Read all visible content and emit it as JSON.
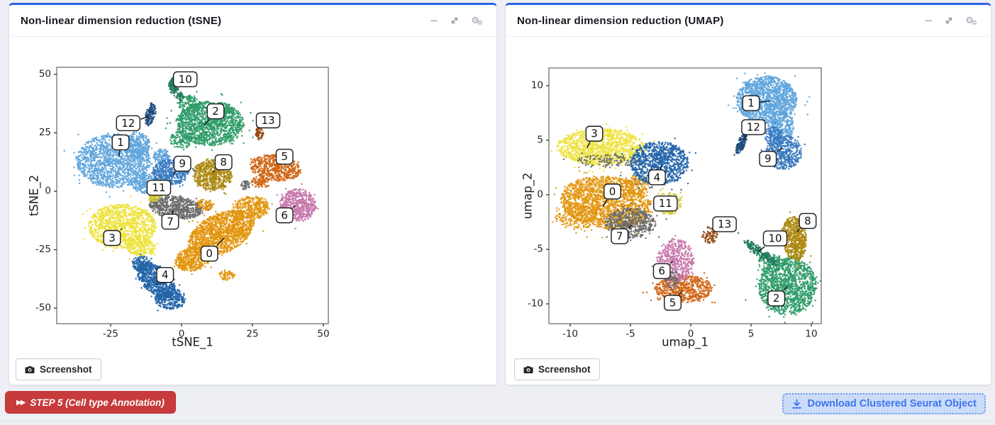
{
  "icons": {
    "minimize": "−",
    "gear": "⚙"
  },
  "panels": [
    {
      "id": "tsne",
      "title": "Non-linear dimension reduction (tSNE)",
      "screenshot_label": "Screenshot"
    },
    {
      "id": "umap",
      "title": "Non-linear dimension reduction (UMAP)",
      "screenshot_label": "Screenshot"
    }
  ],
  "footer": {
    "step_button": {
      "prefix": "▶▶",
      "label": "STEP 5 (Cell type Annotation)",
      "background": "#C73B3D"
    },
    "download_button": {
      "label": "Download Clustered Seurat Object",
      "color": "#3D76EE",
      "background": "#CBDCF9"
    }
  },
  "chart_data": [
    {
      "id": "tsne",
      "type": "scatter",
      "title": "Non-linear dimension reduction (tSNE)",
      "xlabel": "tSNE_1",
      "ylabel": "tSNE_2",
      "xticks": [
        -25,
        0,
        25,
        50
      ],
      "yticks": [
        50,
        25,
        0,
        -25,
        -50
      ],
      "xlim": [
        -44,
        51.8
      ],
      "ylim": [
        -56.5,
        53
      ],
      "grid": false,
      "legend": "none",
      "clusters": [
        {
          "id": "0",
          "color": "#E2960E",
          "label_x": 9.8,
          "label_y": -26.7,
          "target_x": 15,
          "target_y": -20,
          "blobs": [
            [
              14,
              -18,
              13,
              8,
              35,
              1500
            ],
            [
              4,
              -29,
              6.5,
              5,
              20,
              450
            ],
            [
              25,
              -7,
              6,
              5,
              0,
              350
            ],
            [
              16,
              -36,
              3,
              2,
              0,
              60
            ],
            [
              8,
              -6,
              3,
              2.5,
              0,
              100
            ]
          ]
        },
        {
          "id": "1",
          "color": "#60A5DD",
          "label_x": -21.5,
          "label_y": 20.9,
          "target_x": -22,
          "target_y": 15,
          "blobs": [
            [
              -24,
              13,
              13,
              11.5,
              0,
              1500
            ],
            [
              -13,
              3,
              5,
              4,
              0,
              250
            ],
            [
              -16,
              20,
              5,
              5.5,
              0,
              250
            ],
            [
              -7,
              15,
              3,
              3,
              0,
              120
            ]
          ]
        },
        {
          "id": "2",
          "color": "#2F9C68",
          "label_x": 12,
          "label_y": 34.2,
          "target_x": 8,
          "target_y": 28,
          "blobs": [
            [
              10,
              29,
              12,
              9.5,
              0,
              1400
            ],
            [
              3,
              37,
              4,
              4,
              0,
              150
            ],
            [
              14,
              35,
              4,
              3,
              0,
              100
            ],
            [
              0,
              22,
              4,
              4,
              0,
              120
            ]
          ]
        },
        {
          "id": "3",
          "color": "#EDE23B",
          "label_x": -24.5,
          "label_y": -20,
          "target_x": -21,
          "target_y": -16,
          "blobs": [
            [
              -21,
              -15,
              12,
              9.5,
              0,
              1200
            ],
            [
              -14,
              -24,
              5,
              4,
              0,
              200
            ]
          ]
        },
        {
          "id": "4",
          "color": "#2264A9",
          "label_x": -5.8,
          "label_y": -35.8,
          "target_x": -9,
          "target_y": -40,
          "blobs": [
            [
              -9,
              -38,
              9,
              5,
              -52,
              700
            ],
            [
              -4,
              -46,
              5.5,
              4.5,
              0,
              300
            ],
            [
              -14,
              -31,
              3.5,
              3.5,
              0,
              120
            ]
          ]
        },
        {
          "id": "5",
          "color": "#D06414",
          "label_x": 36.3,
          "label_y": 14.8,
          "target_x": 33,
          "target_y": 11,
          "blobs": [
            [
              33,
              10,
              9,
              5.5,
              -10,
              550
            ],
            [
              28,
              4,
              3.5,
              2.5,
              0,
              90
            ]
          ]
        },
        {
          "id": "6",
          "color": "#C677AC",
          "label_x": 36.3,
          "label_y": -10.3,
          "target_x": 40,
          "target_y": -6,
          "blobs": [
            [
              41,
              -6,
              6.5,
              7,
              0,
              560
            ]
          ]
        },
        {
          "id": "7",
          "color": "#6A6A6A",
          "label_x": -4,
          "label_y": -13,
          "target_x": -3,
          "target_y": -8,
          "blobs": [
            [
              -2,
              -7,
              9.5,
              4.8,
              -8,
              620
            ],
            [
              22.5,
              2.5,
              1.6,
              2,
              0,
              40
            ]
          ]
        },
        {
          "id": "8",
          "color": "#AC870F",
          "label_x": 14.8,
          "label_y": 12.4,
          "target_x": 11,
          "target_y": 8,
          "blobs": [
            [
              11,
              7,
              7,
              6.5,
              -20,
              600
            ]
          ]
        },
        {
          "id": "9",
          "color": "#3779BF",
          "label_x": 0.3,
          "label_y": 11.8,
          "target_x": -3,
          "target_y": 7,
          "blobs": [
            [
              -4,
              8,
              6.5,
              5.5,
              0,
              480
            ]
          ]
        },
        {
          "id": "10",
          "color": "#207A5C",
          "label_x": 1.3,
          "label_y": 47.9,
          "target_x": -2,
          "target_y": 45,
          "blobs": [
            [
              -2.5,
              45.5,
              3.8,
              2.0,
              76,
              150
            ],
            [
              -0.5,
              40.5,
              1.5,
              1.5,
              0,
              40
            ]
          ]
        },
        {
          "id": "11",
          "color": "#CFC52F",
          "label_x": -8,
          "label_y": 1.5,
          "target_x": -9,
          "target_y": -1.5,
          "blobs": [
            [
              -9,
              -1.5,
              3.4,
              1.9,
              55,
              130
            ]
          ]
        },
        {
          "id": "12",
          "color": "#1F4E7E",
          "label_x": -18.8,
          "label_y": 29.1,
          "target_x": -11.5,
          "target_y": 32,
          "blobs": [
            [
              -11,
              33,
              5,
              1.6,
              80,
              130
            ]
          ]
        },
        {
          "id": "13",
          "color": "#95470F",
          "label_x": 30.5,
          "label_y": 30.3,
          "target_x": 28,
          "target_y": 26.5,
          "blobs": [
            [
              27.5,
              25,
              3.5,
              1.4,
              85,
              70
            ]
          ]
        }
      ]
    },
    {
      "id": "umap",
      "type": "scatter",
      "title": "Non-linear dimension reduction (UMAP)",
      "xlabel": "umap_1",
      "ylabel": "umap_2",
      "xticks": [
        -10,
        -5,
        0,
        5,
        10
      ],
      "yticks": [
        10,
        5,
        0,
        -5,
        -10
      ],
      "xlim": [
        -11.8,
        10.8
      ],
      "ylim": [
        -11.8,
        11.6
      ],
      "grid": false,
      "legend": "none",
      "clusters": [
        {
          "id": "0",
          "color": "#E2960E",
          "label_x": -6.5,
          "label_y": 0.3,
          "target_x": -7.3,
          "target_y": -1.1,
          "blobs": [
            [
              -7,
              -0.7,
              3.8,
              2.4,
              -8,
              1800
            ],
            [
              -9.5,
              -2,
              1.8,
              1.2,
              0,
              200
            ],
            [
              -4.6,
              0.8,
              1.2,
              1,
              0,
              150
            ]
          ]
        },
        {
          "id": "1",
          "color": "#60A5DD",
          "label_x": 5.0,
          "label_y": 8.4,
          "target_x": 6.6,
          "target_y": 8.6,
          "blobs": [
            [
              6.3,
              8.7,
              2.5,
              2.2,
              0,
              1500
            ],
            [
              7.5,
              6.3,
              1.1,
              1.3,
              0,
              250
            ]
          ]
        },
        {
          "id": "2",
          "color": "#2F9C68",
          "label_x": 7.1,
          "label_y": -9.5,
          "target_x": 8,
          "target_y": -8.4,
          "blobs": [
            [
              8,
              -8.3,
              2.4,
              2.7,
              0,
              1400
            ],
            [
              6.6,
              -6.2,
              1,
              1,
              0,
              100
            ]
          ]
        },
        {
          "id": "3",
          "color": "#EDE23B",
          "label_x": -8,
          "label_y": 5.6,
          "target_x": -8.6,
          "target_y": 4.3,
          "blobs": [
            [
              -7.5,
              4.4,
              3.6,
              1.7,
              0,
              1200
            ]
          ]
        },
        {
          "id": "4",
          "color": "#2264A9",
          "label_x": -2.8,
          "label_y": 1.6,
          "target_x": -2.4,
          "target_y": 2.7,
          "blobs": [
            [
              -2.6,
              2.9,
              2.4,
              2.0,
              0,
              1000
            ]
          ]
        },
        {
          "id": "5",
          "color": "#D06414",
          "label_x": -1.5,
          "label_y": -9.9,
          "target_x": -0.7,
          "target_y": -8.8,
          "blobs": [
            [
              -0.6,
              -8.6,
              2.4,
              1.25,
              0,
              620
            ]
          ]
        },
        {
          "id": "6",
          "color": "#C677AC",
          "label_x": -2.4,
          "label_y": -7.0,
          "target_x": -1.5,
          "target_y": -6.1,
          "blobs": [
            [
              -1.3,
              -6,
              1.55,
              2,
              0,
              520
            ]
          ]
        },
        {
          "id": "7",
          "color": "#6A6A6A",
          "label_x": -5.9,
          "label_y": -3.8,
          "target_x": -4.9,
          "target_y": -2.8,
          "blobs": [
            [
              -5,
              -2.6,
              2.1,
              1.4,
              0,
              550
            ],
            [
              -7,
              3.1,
              2.5,
              0.6,
              0,
              120
            ],
            [
              -1.6,
              -7.7,
              0.6,
              0.9,
              0,
              60
            ]
          ]
        },
        {
          "id": "8",
          "color": "#AC870F",
          "label_x": 9.7,
          "label_y": -2.4,
          "target_x": 8.8,
          "target_y": -3.4,
          "blobs": [
            [
              8.6,
              -4,
              1.0,
              2.0,
              5,
              600
            ]
          ]
        },
        {
          "id": "9",
          "color": "#3779BF",
          "label_x": 6.4,
          "label_y": 3.3,
          "target_x": 7.6,
          "target_y": 4.3,
          "blobs": [
            [
              7.7,
              3.9,
              1.5,
              1.6,
              0,
              500
            ],
            [
              6.9,
              5.4,
              0.8,
              0.9,
              0,
              120
            ]
          ]
        },
        {
          "id": "10",
          "color": "#207A5C",
          "label_x": 7.0,
          "label_y": -4.0,
          "target_x": 5.6,
          "target_y": -5.2,
          "blobs": [
            [
              5.8,
              -5.3,
              1.8,
              0.4,
              -40,
              180
            ]
          ]
        },
        {
          "id": "11",
          "color": "#CFC52F",
          "label_x": -2.1,
          "label_y": -0.8,
          "target_x": -1.9,
          "target_y": -0.9,
          "blobs": [
            [
              -1.8,
              -0.8,
              1.05,
              1.05,
              0,
              150
            ]
          ]
        },
        {
          "id": "12",
          "color": "#1F4E7E",
          "label_x": 5.2,
          "label_y": 6.2,
          "target_x": 4.3,
          "target_y": 5.0,
          "blobs": [
            [
              4.2,
              4.7,
              1.0,
              0.32,
              70,
              140
            ]
          ]
        },
        {
          "id": "13",
          "color": "#95470F",
          "label_x": 2.8,
          "label_y": -2.7,
          "target_x": 1.7,
          "target_y": -3.5,
          "blobs": [
            [
              1.6,
              -3.7,
              0.6,
              0.8,
              0,
              80
            ]
          ]
        }
      ]
    }
  ]
}
